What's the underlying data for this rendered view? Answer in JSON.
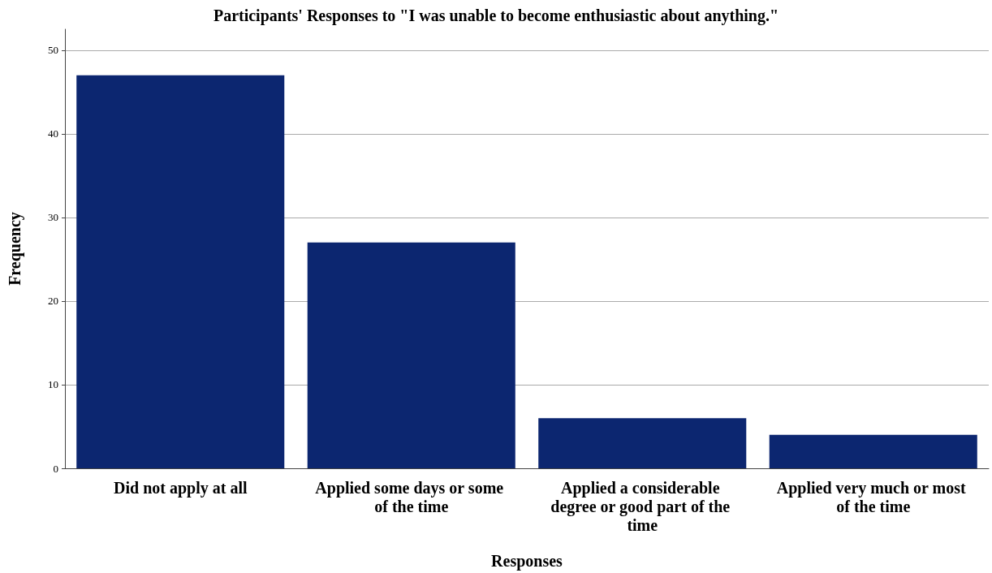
{
  "chart_data": {
    "type": "bar",
    "title": "Participants' Responses to \"I was unable to become enthusiastic about anything.\"",
    "xlabel": "Responses",
    "ylabel": "Frequency",
    "categories": [
      "Did not apply at all",
      "Applied some days or some of the time",
      "Applied a considerable degree or good part of the time",
      "Applied very much or most of the time"
    ],
    "values": [
      47,
      27,
      6,
      4
    ],
    "color": "#0c2670",
    "ylim": [
      0,
      52.5
    ],
    "yticks": [
      0,
      10,
      20,
      30,
      40,
      50
    ],
    "grid": "y"
  }
}
